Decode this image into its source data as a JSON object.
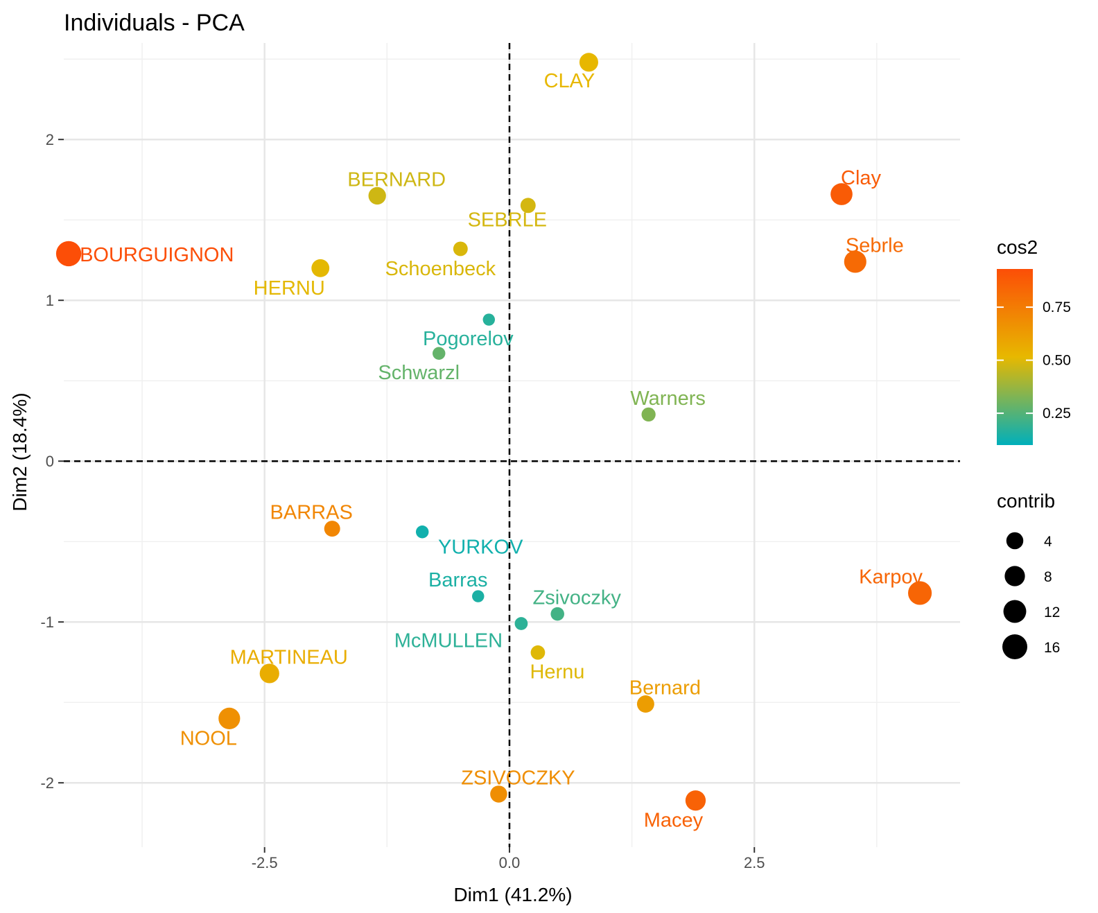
{
  "chart_data": {
    "type": "scatter",
    "title": "Individuals - PCA",
    "xlabel": "Dim1 (41.2%)",
    "ylabel": "Dim2 (18.4%)",
    "xlim": [
      -4.55,
      4.6
    ],
    "ylim": [
      -2.4,
      2.6
    ],
    "x_ticks": [
      -2.5,
      0.0,
      2.5
    ],
    "x_tick_labels": [
      "-2.5",
      "0.0",
      "2.5"
    ],
    "y_ticks": [
      -2,
      -1,
      0,
      1,
      2
    ],
    "y_tick_labels": [
      "-2",
      "-1",
      "0",
      "1",
      "2"
    ],
    "grid": true,
    "reference_lines": {
      "x": 0,
      "y": 0,
      "style": "dashed"
    },
    "color_legend": {
      "title": "cos2",
      "ticks": [
        0.25,
        0.5,
        0.75
      ],
      "tick_labels": [
        "0.25",
        "0.50",
        "0.75"
      ],
      "range": [
        0.1,
        0.93
      ],
      "gradient": [
        "#00AFBB",
        "#E7B800",
        "#FC4E07"
      ]
    },
    "size_legend": {
      "title": "contrib",
      "values": [
        4,
        8,
        12,
        16
      ],
      "labels": [
        "4",
        "8",
        "12",
        "16"
      ]
    },
    "points": [
      {
        "label": "SEBRLE",
        "x": 0.19,
        "y": 1.59,
        "cos2": 0.48,
        "contrib": 2.4
      },
      {
        "label": "CLAY",
        "x": 0.81,
        "y": 2.48,
        "cos2": 0.52,
        "contrib": 6.0
      },
      {
        "label": "BERNARD",
        "x": -1.35,
        "y": 1.65,
        "cos2": 0.47,
        "contrib": 4.6
      },
      {
        "label": "YURKOV",
        "x": -0.89,
        "y": -0.44,
        "cos2": 0.13,
        "contrib": 0.9
      },
      {
        "label": "ZSIVOCZKY",
        "x": -0.11,
        "y": -2.07,
        "cos2": 0.68,
        "contrib": 4.0
      },
      {
        "label": "McMULLEN",
        "x": 0.12,
        "y": -1.01,
        "cos2": 0.18,
        "contrib": 1.0
      },
      {
        "label": "MARTINEAU",
        "x": -2.45,
        "y": -1.32,
        "cos2": 0.56,
        "contrib": 7.0
      },
      {
        "label": "HERNU",
        "x": -1.93,
        "y": 1.2,
        "cos2": 0.51,
        "contrib": 5.0
      },
      {
        "label": "BARRAS",
        "x": -1.81,
        "y": -0.42,
        "cos2": 0.71,
        "contrib": 3.0
      },
      {
        "label": "NOOL",
        "x": -2.86,
        "y": -1.6,
        "cos2": 0.67,
        "contrib": 10.0
      },
      {
        "label": "BOURGUIGNON",
        "x": -4.5,
        "y": 1.29,
        "cos2": 0.93,
        "contrib": 16.5
      },
      {
        "label": "Sebrle",
        "x": 3.53,
        "y": 1.24,
        "cos2": 0.82,
        "contrib": 11.0
      },
      {
        "label": "Clay",
        "x": 3.39,
        "y": 1.66,
        "cos2": 0.88,
        "contrib": 10.5
      },
      {
        "label": "Karpov",
        "x": 4.19,
        "y": -0.82,
        "cos2": 0.84,
        "contrib": 13.5
      },
      {
        "label": "Macey",
        "x": 1.9,
        "y": -2.11,
        "cos2": 0.85,
        "contrib": 8.0
      },
      {
        "label": "Warners",
        "x": 1.42,
        "y": 0.29,
        "cos2": 0.33,
        "contrib": 1.6
      },
      {
        "label": "Zsivoczky",
        "x": 0.49,
        "y": -0.95,
        "cos2": 0.22,
        "contrib": 1.3
      },
      {
        "label": "Hernu",
        "x": 0.29,
        "y": -1.19,
        "cos2": 0.5,
        "contrib": 1.8
      },
      {
        "label": "Bernard",
        "x": 1.39,
        "y": -1.51,
        "cos2": 0.62,
        "contrib": 4.3
      },
      {
        "label": "Schwarzl",
        "x": -0.72,
        "y": 0.67,
        "cos2": 0.28,
        "contrib": 0.9
      },
      {
        "label": "Pogorelov",
        "x": -0.21,
        "y": 0.88,
        "cos2": 0.17,
        "contrib": 0.6
      },
      {
        "label": "Schoenbeck",
        "x": -0.5,
        "y": 1.32,
        "cos2": 0.49,
        "contrib": 1.9
      },
      {
        "label": "Barras",
        "x": -0.32,
        "y": -0.84,
        "cos2": 0.15,
        "contrib": 0.6
      }
    ]
  }
}
